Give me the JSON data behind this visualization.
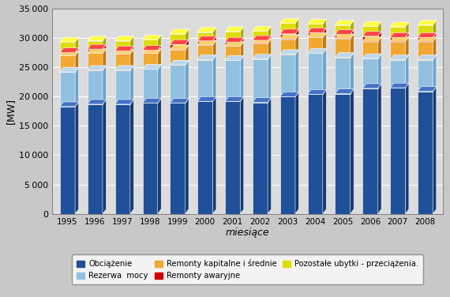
{
  "years": [
    1995,
    1996,
    1997,
    1998,
    1999,
    2000,
    2001,
    2002,
    2003,
    2004,
    2005,
    2006,
    2007,
    2008
  ],
  "obciazenie": [
    18300,
    18700,
    18700,
    18900,
    18900,
    19200,
    19200,
    19000,
    20000,
    20400,
    20500,
    21400,
    21500,
    20900
  ],
  "rezerwa_mocy": [
    5900,
    5800,
    5800,
    5800,
    6500,
    7100,
    7000,
    7400,
    7200,
    7000,
    6200,
    5100,
    4800,
    5400
  ],
  "remonty_kapitalne": [
    2800,
    2900,
    2800,
    2700,
    2600,
    2500,
    2400,
    2700,
    2600,
    2700,
    3200,
    2900,
    3100,
    3100
  ],
  "remonty_awaryjne": [
    500,
    700,
    500,
    500,
    900,
    700,
    700,
    500,
    900,
    800,
    700,
    900,
    700,
    700
  ],
  "pozostale_ubytki": [
    1800,
    1400,
    1700,
    1800,
    1800,
    1500,
    1800,
    1600,
    1800,
    1500,
    1600,
    1700,
    1800,
    2100
  ],
  "colors_front": {
    "obciazenie": "#1F5099",
    "rezerwa_mocy": "#92C0E0",
    "remonty_kapitalne": "#F0A830",
    "remonty_awaryjne": "#CC0000",
    "pozostale_ubytki": "#DDDD00"
  },
  "colors_top": {
    "obciazenie": "#4472C4",
    "rezerwa_mocy": "#BDD7EE",
    "remonty_kapitalne": "#FAD06A",
    "remonty_awaryjne": "#FF4444",
    "pozostale_ubytki": "#FFFF44"
  },
  "colors_side": {
    "obciazenie": "#163A72",
    "rezerwa_mocy": "#6BA3CC",
    "remonty_kapitalne": "#C07810",
    "remonty_awaryjne": "#880000",
    "pozostale_ubytki": "#AAAA00"
  },
  "ylabel": "[MW]",
  "xlabel": "miesiące",
  "ylim": [
    0,
    35000
  ],
  "yticks": [
    0,
    5000,
    10000,
    15000,
    20000,
    25000,
    30000,
    35000
  ],
  "legend_labels": [
    "Obciążenie",
    "Rezerwa  mocy",
    "Remonty kapitalne i średnie",
    "Remonty awaryjne",
    "Pozostałe ubytki - przeciążenia."
  ],
  "fig_bg": "#C8C8C8",
  "plot_bg": "#DCDCDC"
}
